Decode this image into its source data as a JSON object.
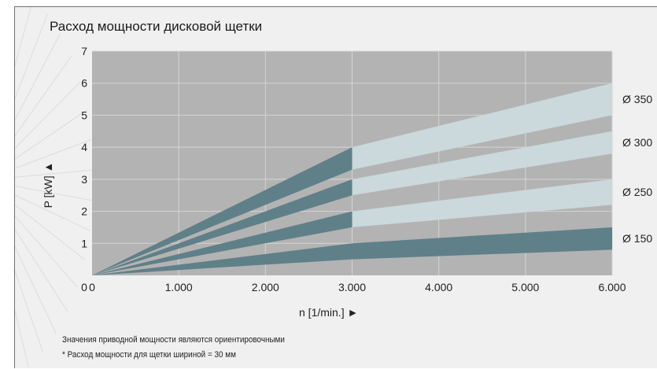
{
  "chart_data": {
    "type": "area",
    "title": "Расход мощности дисковой щетки",
    "xlabel": "n [1/min.] ►",
    "ylabel": "P [kW] ▲",
    "xlim": [
      0,
      6000
    ],
    "ylim": [
      0,
      7
    ],
    "x_ticks": [
      0,
      1000,
      2000,
      3000,
      4000,
      5000,
      6000
    ],
    "x_tick_labels": [
      "0",
      "1.000",
      "2.000",
      "3.000",
      "4.000",
      "5.000",
      "6.000"
    ],
    "y_ticks": [
      1,
      2,
      3,
      4,
      5,
      6,
      7
    ],
    "y_tick_labels": [
      "1",
      "2",
      "3",
      "4",
      "5",
      "6",
      "7"
    ],
    "grid": true,
    "series": [
      {
        "name": "Ø 150",
        "x": [
          0,
          3000,
          6000
        ],
        "upper": [
          0,
          1.0,
          1.5
        ],
        "lower": [
          0,
          0.5,
          0.8
        ]
      },
      {
        "name": "Ø 250",
        "x": [
          0,
          3000,
          6000
        ],
        "upper": [
          0,
          2.0,
          3.0
        ],
        "lower": [
          0,
          1.5,
          2.2
        ]
      },
      {
        "name": "Ø 300",
        "x": [
          0,
          3000,
          6000
        ],
        "upper": [
          0,
          3.0,
          4.5
        ],
        "lower": [
          0,
          2.5,
          3.8
        ]
      },
      {
        "name": "Ø 350",
        "x": [
          0,
          3000,
          6000
        ],
        "upper": [
          0,
          4.0,
          6.0
        ],
        "lower": [
          0,
          3.3,
          5.0
        ]
      }
    ],
    "colors": {
      "plot_background": "#b3b3b3",
      "gridline": "#d4d4d4",
      "band_dark": "#5f8088",
      "band_light": "#cbd8dc",
      "page_background": "#f0f0f0"
    }
  },
  "notes": [
    "Значения приводной мощности являются ориентировочными",
    "* Расход мощности для щетки шириной = 30 мм"
  ]
}
